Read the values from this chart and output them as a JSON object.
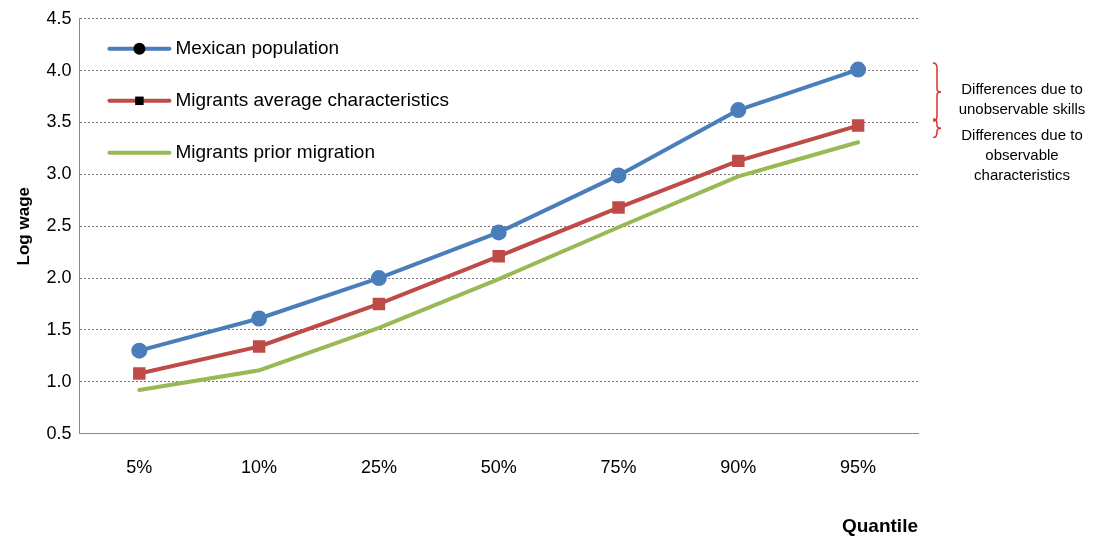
{
  "chart_data": {
    "type": "line",
    "xlabel": "Quantile",
    "ylabel": "Log wage",
    "categories": [
      "5%",
      "10%",
      "25%",
      "50%",
      "75%",
      "90%",
      "95%"
    ],
    "series": [
      {
        "name": "Mexican population",
        "color": "#4a7ebb",
        "marker": "circle",
        "values": [
          1.3,
          1.61,
          2.0,
          2.44,
          2.99,
          3.62,
          4.01
        ]
      },
      {
        "name": "Migrants average characteristics",
        "color": "#be4b48",
        "marker": "square",
        "values": [
          1.08,
          1.34,
          1.75,
          2.21,
          2.68,
          3.13,
          3.47
        ]
      },
      {
        "name": "Migrants prior migration",
        "color": "#98b954",
        "marker": "none",
        "values": [
          0.92,
          1.11,
          1.52,
          1.99,
          2.49,
          2.98,
          3.31
        ]
      }
    ],
    "ylim": [
      0.5,
      4.5
    ],
    "yticks": [
      {
        "value": 0.5,
        "label": "0.5"
      },
      {
        "value": 1,
        "label": "1.0"
      },
      {
        "value": 1.5,
        "label": "1.5"
      },
      {
        "value": 2,
        "label": "2.0"
      },
      {
        "value": 2.5,
        "label": "2.5"
      },
      {
        "value": 3,
        "label": "3.0"
      },
      {
        "value": 3.5,
        "label": "3.5"
      },
      {
        "value": 4,
        "label": "4.0"
      },
      {
        "value": 4.5,
        "label": "4.5"
      }
    ],
    "grid": "y",
    "legend": "top left",
    "annotations": [
      "Differences due to unobservable skills",
      "Differences due to observable characteristics"
    ]
  }
}
